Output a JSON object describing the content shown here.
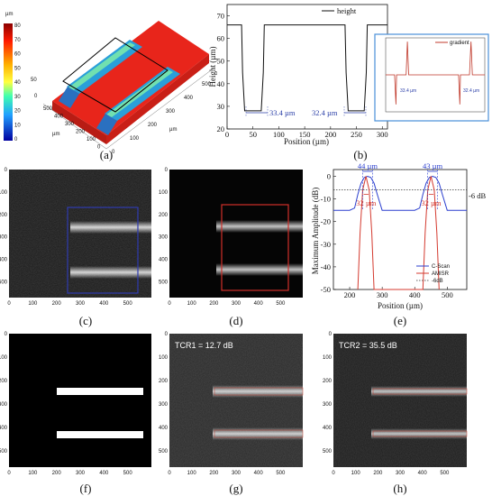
{
  "panel_labels": [
    "(a)",
    "(b)",
    "(c)",
    "(d)",
    "(e)",
    "(f)",
    "(g)",
    "(h)"
  ],
  "panel_a": {
    "colorbar_unit": "µm",
    "colorbar_ticks": [
      "80",
      "70",
      "60",
      "50",
      "40",
      "30",
      "20",
      "10",
      "0"
    ],
    "z_ticks": [
      "50",
      "0"
    ],
    "axis_ticks_left": [
      "500",
      "400",
      "300",
      "200",
      "100",
      "0"
    ],
    "axis_ticks_right": [
      "0",
      "100",
      "200",
      "300",
      "400",
      "500"
    ],
    "axis_unit": "µm",
    "colors": {
      "high": "#e8251b",
      "low": "#1f7fc4"
    }
  },
  "panel_b": {
    "xlabel": "Position (µm)",
    "ylabel": "Height (µm)",
    "legend": "height",
    "inset_legend": "gradient",
    "widths": [
      "33.4 µm",
      "32.4 µm"
    ],
    "inset_widths": [
      "33.4 µm",
      "32.4 µm"
    ],
    "colors": {
      "line": "#111111",
      "inset_border": "#4a90d9",
      "gradient": "#c0392b",
      "dim": "#2b3fa8"
    }
  },
  "panel_c": {
    "x_ticks": [
      "0",
      "100",
      "200",
      "300",
      "400",
      "500"
    ],
    "y_ticks": [
      "0",
      "100",
      "200",
      "300",
      "400",
      "500"
    ],
    "box_color": "#2f3bb0"
  },
  "panel_d": {
    "x_ticks": [
      "0",
      "100",
      "200",
      "300",
      "400",
      "500"
    ],
    "y_ticks": [
      "0",
      "100",
      "200",
      "300",
      "400",
      "500"
    ],
    "box_color": "#d0302a"
  },
  "panel_e": {
    "xlabel": "Position (µm)",
    "ylabel": "Maximum Amplitude (dB)",
    "db_label": "-6 dB",
    "widths_top": [
      "44 µm",
      "43 µm"
    ],
    "widths_bottom": [
      "32 µm",
      "32 µm"
    ],
    "legend": [
      "C-Scan",
      "AMISR",
      "-6dB"
    ],
    "colors": {
      "cscan": "#2b3fcf",
      "amisr": "#d43a2f",
      "db": "#333333",
      "dim_blue": "#2b3fcf",
      "dim_red": "#d43a2f"
    }
  },
  "panel_f": {
    "x_ticks": [
      "0",
      "100",
      "200",
      "300",
      "400",
      "500"
    ],
    "y_ticks": [
      "0",
      "100",
      "200",
      "300",
      "400",
      "500"
    ]
  },
  "panel_g": {
    "annotation": "TCR1 = 12.7 dB",
    "x_ticks": [
      "0",
      "100",
      "200",
      "300",
      "400",
      "500"
    ],
    "y_ticks": [
      "0",
      "100",
      "200",
      "300",
      "400",
      "500"
    ]
  },
  "panel_h": {
    "annotation": "TCR2 = 35.5 dB",
    "x_ticks": [
      "0",
      "100",
      "200",
      "300",
      "400",
      "500"
    ],
    "y_ticks": [
      "0",
      "100",
      "200",
      "300",
      "400",
      "500"
    ]
  },
  "chart_data": [
    {
      "type": "line",
      "title": "",
      "xlabel": "Position (µm)",
      "ylabel": "Height (µm)",
      "xlim": [
        0,
        310
      ],
      "ylim": [
        20,
        75
      ],
      "x_ticks": [
        "0",
        "50",
        "100",
        "150",
        "200",
        "250",
        "300"
      ],
      "y_ticks": [
        "20",
        "30",
        "40",
        "50",
        "60",
        "70"
      ],
      "legend": "top-right",
      "series": [
        {
          "name": "height",
          "x": [
            0,
            28,
            30,
            34,
            66,
            70,
            72,
            228,
            230,
            234,
            265,
            269,
            271,
            310
          ],
          "y": [
            66,
            66,
            45,
            28,
            28,
            45,
            66,
            66,
            45,
            28,
            28,
            45,
            66,
            66
          ]
        }
      ]
    },
    {
      "type": "line",
      "title": "",
      "xlabel": "",
      "ylabel": "",
      "xlim": [
        0,
        310
      ],
      "ylim": [
        -1,
        1
      ],
      "legend": "top-right",
      "series": [
        {
          "name": "gradient",
          "x": [
            0,
            28,
            32,
            34,
            64,
            68,
            72,
            228,
            232,
            234,
            262,
            267,
            271,
            310
          ],
          "y": [
            0,
            0,
            -0.8,
            0,
            0,
            0.9,
            0,
            0,
            -0.8,
            0,
            0,
            0.9,
            0,
            0
          ]
        }
      ]
    },
    {
      "type": "line",
      "title": "",
      "xlabel": "Position (µm)",
      "ylabel": "Maximum Amplitude (dB)",
      "xlim": [
        150,
        560
      ],
      "ylim": [
        -50,
        3
      ],
      "x_ticks": [
        "200",
        "300",
        "400",
        "500"
      ],
      "y_ticks": [
        "0",
        "-10",
        "-20",
        "-30",
        "-40",
        "-50"
      ],
      "legend": "bottom-right",
      "series": [
        {
          "name": "C-Scan",
          "x": [
            150,
            200,
            215,
            225,
            235,
            245,
            255,
            265,
            275,
            285,
            300,
            400,
            415,
            425,
            435,
            445,
            455,
            465,
            475,
            485,
            500,
            560
          ],
          "y": [
            -15,
            -15,
            -14,
            -8,
            -3,
            -0.5,
            0,
            -0.5,
            -3,
            -8,
            -15,
            -15,
            -14,
            -8,
            -3,
            -0.5,
            0,
            -0.5,
            -3,
            -8,
            -15,
            -15
          ]
        },
        {
          "name": "AMISR",
          "x": [
            225,
            232,
            240,
            250,
            260,
            268,
            275,
            425,
            432,
            440,
            450,
            460,
            468,
            475
          ],
          "y": [
            -50,
            -25,
            -6,
            0,
            -6,
            -25,
            -50,
            -50,
            -25,
            -6,
            0,
            -6,
            -25,
            -50
          ]
        },
        {
          "name": "-6dB",
          "x": [
            150,
            560
          ],
          "y": [
            -6,
            -6
          ]
        }
      ]
    }
  ]
}
